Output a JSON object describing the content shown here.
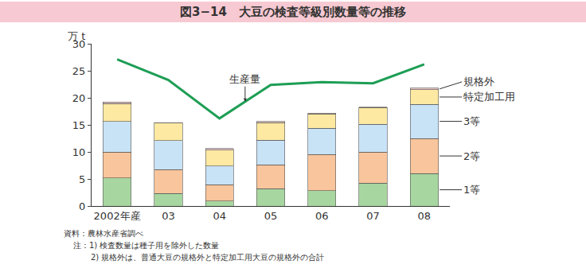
{
  "chart_data": {
    "type": "bar",
    "title": "図3−14　大豆の検査等級別数量等の推移",
    "y_label": "万 t",
    "categories": [
      "2002年産",
      "03",
      "04",
      "05",
      "06",
      "07",
      "08"
    ],
    "stacked": true,
    "ylim": [
      0,
      30
    ],
    "yticks": [
      0,
      5,
      10,
      15,
      20,
      25,
      30
    ],
    "grid": false,
    "series": [
      {
        "name": "1等",
        "color": "#a8d6a0",
        "values": [
          5.2,
          2.3,
          0.9,
          3.2,
          2.8,
          4.2,
          6.0
        ]
      },
      {
        "name": "2等",
        "color": "#f9c59c",
        "values": [
          4.8,
          4.4,
          3.0,
          4.4,
          6.7,
          5.8,
          6.5
        ]
      },
      {
        "name": "3等",
        "color": "#c8e2f6",
        "values": [
          5.6,
          5.4,
          3.5,
          4.6,
          4.9,
          5.1,
          6.3
        ]
      },
      {
        "name": "特定加工用",
        "color": "#fde9a2",
        "values": [
          3.3,
          3.2,
          2.9,
          3.2,
          2.6,
          3.1,
          2.7
        ]
      },
      {
        "name": "規格外",
        "color": "#e6c3c3",
        "values": [
          0.3,
          0.1,
          0.3,
          0.2,
          0.2,
          0.1,
          0.3
        ]
      },
      {
        "name": "生産量",
        "type": "line",
        "color": "#1e9e55",
        "values": [
          27.1,
          23.3,
          16.2,
          22.4,
          22.9,
          22.7,
          26.2
        ]
      }
    ],
    "notes": [
      "資料：農林水産省調べ",
      "注：1) 検査数量は種子用を除外した数量",
      "2) 規格外は、普通大豆の規格外と特定加工用大豆の規格外の合計"
    ]
  }
}
